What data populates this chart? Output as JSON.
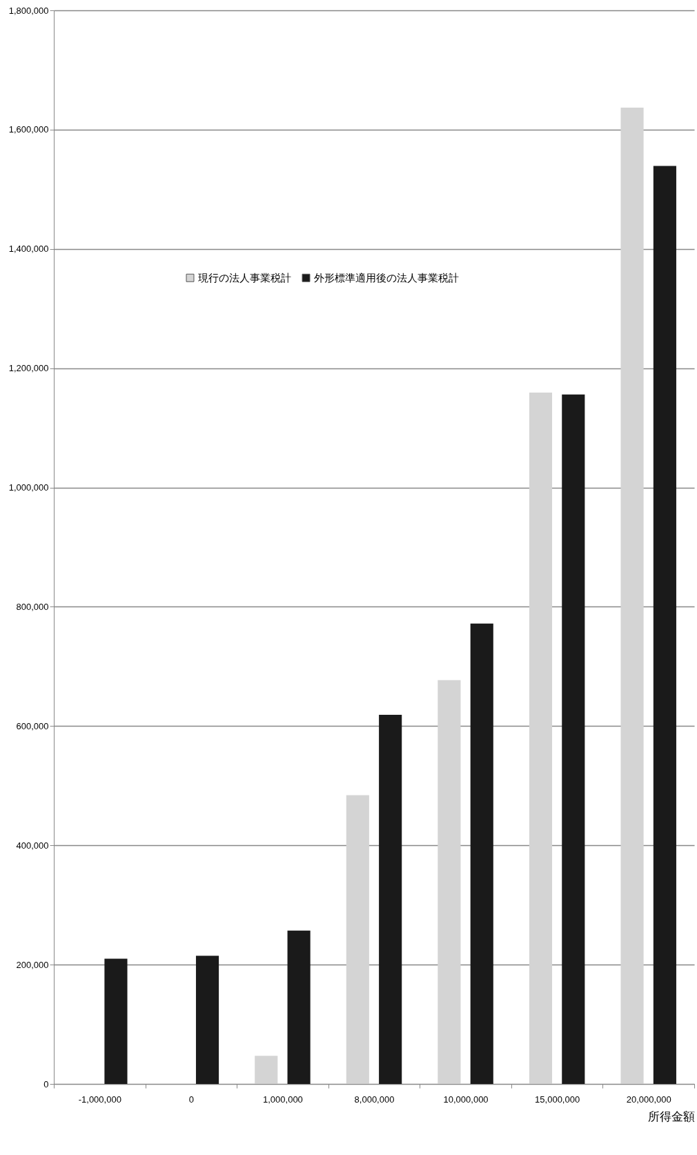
{
  "chart_data": {
    "type": "bar",
    "categories": [
      "-1,000,000",
      "0",
      "1,000,000",
      "8,000,000",
      "10,000,000",
      "15,000,000",
      "20,000,000"
    ],
    "series": [
      {
        "name": "現行の法人事業税計",
        "color": "#d4d4d4",
        "values": [
          null,
          null,
          47000,
          484000,
          677000,
          1159000,
          1637000
        ]
      },
      {
        "name": "外形標準適用後の法人事業税計",
        "color": "#1a1a1a",
        "values": [
          210000,
          215000,
          257000,
          619000,
          772000,
          1156000,
          1539000
        ]
      }
    ],
    "xlabel": "所得金額",
    "ylim": [
      0,
      1800000
    ],
    "yticks": [
      0,
      {
        "value": 200000,
        "label": "200,000"
      },
      {
        "value": 400000,
        "label": "400,000"
      },
      {
        "value": 600000,
        "label": "600,000"
      },
      {
        "value": 800000,
        "label": "800,000"
      },
      {
        "value": 1000000,
        "label": "1,000,000"
      },
      {
        "value": 1200000,
        "label": "1,200,000"
      },
      {
        "value": 1400000,
        "label": "1,400,000"
      },
      {
        "value": 1600000,
        "label": "1,600,000"
      },
      {
        "value": 1800000,
        "label": "1,800,000"
      }
    ],
    "grid": "y",
    "legend": "top"
  }
}
